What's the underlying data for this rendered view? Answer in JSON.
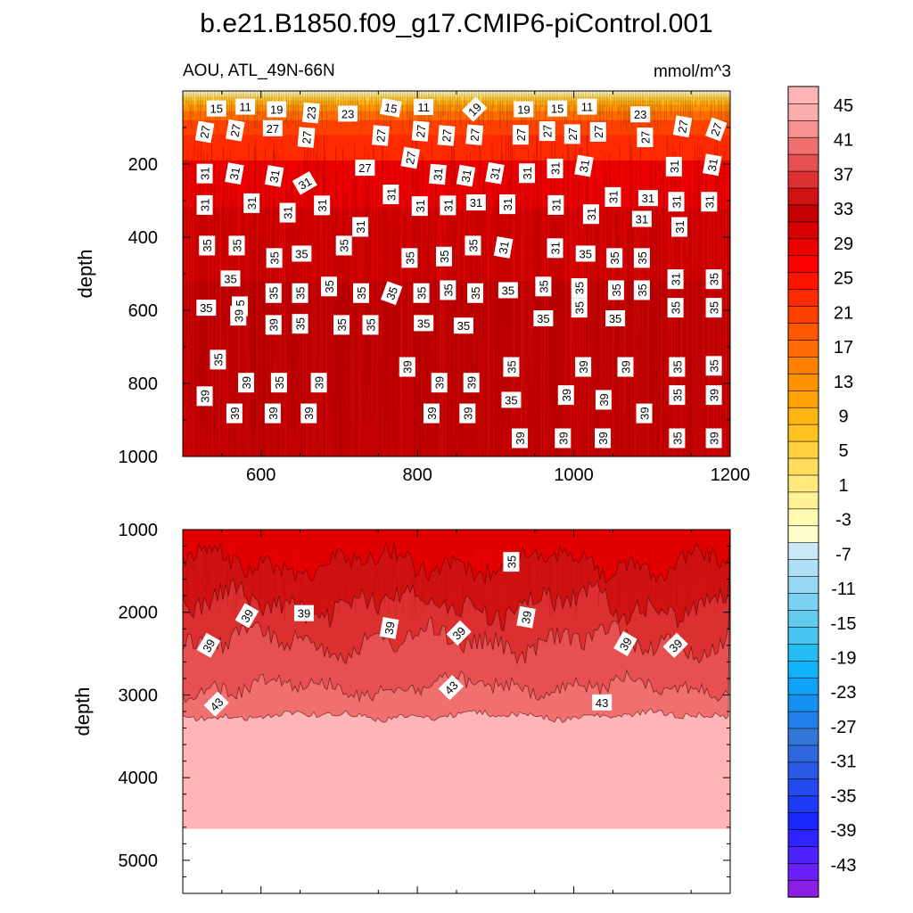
{
  "chart_data": {
    "type": "contour",
    "title": "b.e21.B1850.f09_g17.CMIP6-piControl.001",
    "left_subtitle": "AOU, ATL_49N-66N",
    "units": "mmol/m^3",
    "ylabel": "depth",
    "colorbar": {
      "min": -47,
      "max": 49,
      "step": 2,
      "labels": [
        "45",
        "41",
        "37",
        "33",
        "29",
        "25",
        "21",
        "17",
        "13",
        "9",
        "5",
        "1",
        "-3",
        "-7",
        "-11",
        "-15",
        "-19",
        "-23",
        "-27",
        "-31",
        "-35",
        "-39",
        "-43"
      ],
      "colors": [
        "#8b1fe6",
        "#6b1ff7",
        "#4d22fc",
        "#2f24fd",
        "#1a27fb",
        "#1d3af5",
        "#2449ec",
        "#2a58e4",
        "#2f67dd",
        "#3377d6",
        "#207fe8",
        "#1690f2",
        "#10a2f7",
        "#10b4f8",
        "#24bdf2",
        "#45c5f0",
        "#62cbf0",
        "#7dd1f2",
        "#96d8f3",
        "#b0e0f5",
        "#c8e9f8",
        "#ffffcc",
        "#fffab0",
        "#fff296",
        "#ffe97a",
        "#ffdd5c",
        "#ffd040",
        "#ffc21f",
        "#ffb411",
        "#ffa307",
        "#ff9200",
        "#ff7f00",
        "#ff6b00",
        "#ff5600",
        "#ff4100",
        "#ff2b00",
        "#ff1400",
        "#ff0000",
        "#ec0000",
        "#d80000",
        "#c40000",
        "#d11212",
        "#dc3030",
        "#e75050",
        "#f07070",
        "#f79090",
        "#fcadad",
        "#ffb5b5"
      ]
    },
    "top_panel": {
      "xlim": [
        500,
        1200
      ],
      "ylim": [
        1000,
        0
      ],
      "xticks": [
        600,
        800,
        1000,
        1200
      ],
      "yticks": [
        200,
        400,
        600,
        800,
        1000
      ],
      "contour_labels": [
        {
          "t": "15",
          "x": 543,
          "y": 48,
          "r": 0
        },
        {
          "t": "11",
          "x": 580,
          "y": 43,
          "r": 0
        },
        {
          "t": "19",
          "x": 620,
          "y": 50,
          "r": 0
        },
        {
          "t": "23",
          "x": 664,
          "y": 60,
          "r": -85
        },
        {
          "t": "23",
          "x": 711,
          "y": 62,
          "r": 0
        },
        {
          "t": "15",
          "x": 766,
          "y": 46,
          "r": 10
        },
        {
          "t": "11",
          "x": 808,
          "y": 44,
          "r": 0
        },
        {
          "t": "19",
          "x": 873,
          "y": 50,
          "r": -45
        },
        {
          "t": "19",
          "x": 936,
          "y": 50,
          "r": 0
        },
        {
          "t": "15",
          "x": 979,
          "y": 48,
          "r": 0
        },
        {
          "t": "11",
          "x": 1017,
          "y": 43,
          "r": 0
        },
        {
          "t": "23",
          "x": 1085,
          "y": 64,
          "r": 0
        },
        {
          "t": "27",
          "x": 528,
          "y": 112,
          "r": -80
        },
        {
          "t": "27",
          "x": 567,
          "y": 108,
          "r": -80
        },
        {
          "t": "27",
          "x": 615,
          "y": 102,
          "r": 0
        },
        {
          "t": "27",
          "x": 658,
          "y": 127,
          "r": -85
        },
        {
          "t": "27",
          "x": 753,
          "y": 122,
          "r": -85
        },
        {
          "t": "27",
          "x": 804,
          "y": 110,
          "r": -85
        },
        {
          "t": "27",
          "x": 837,
          "y": 122,
          "r": -85
        },
        {
          "t": "27",
          "x": 873,
          "y": 120,
          "r": -85
        },
        {
          "t": "27",
          "x": 932,
          "y": 120,
          "r": -90
        },
        {
          "t": "27",
          "x": 966,
          "y": 110,
          "r": -90
        },
        {
          "t": "27",
          "x": 998,
          "y": 118,
          "r": -90
        },
        {
          "t": "27",
          "x": 1031,
          "y": 112,
          "r": -90
        },
        {
          "t": "27",
          "x": 1091,
          "y": 127,
          "r": -90
        },
        {
          "t": "27",
          "x": 1139,
          "y": 97,
          "r": -80
        },
        {
          "t": "27",
          "x": 1182,
          "y": 105,
          "r": -70
        },
        {
          "t": "31",
          "x": 528,
          "y": 226,
          "r": -90
        },
        {
          "t": "31",
          "x": 566,
          "y": 226,
          "r": -80
        },
        {
          "t": "31",
          "x": 617,
          "y": 233,
          "r": -80
        },
        {
          "t": "31",
          "x": 656,
          "y": 252,
          "r": -30
        },
        {
          "t": "27",
          "x": 733,
          "y": 210,
          "r": 0
        },
        {
          "t": "27",
          "x": 791,
          "y": 183,
          "r": -80
        },
        {
          "t": "31",
          "x": 826,
          "y": 228,
          "r": -85
        },
        {
          "t": "31",
          "x": 862,
          "y": 232,
          "r": -80
        },
        {
          "t": "31",
          "x": 899,
          "y": 225,
          "r": -80
        },
        {
          "t": "31",
          "x": 940,
          "y": 225,
          "r": -90
        },
        {
          "t": "31",
          "x": 976,
          "y": 212,
          "r": -90
        },
        {
          "t": "31",
          "x": 1013,
          "y": 205,
          "r": -80
        },
        {
          "t": "31",
          "x": 1050,
          "y": 290,
          "r": -90
        },
        {
          "t": "31",
          "x": 1128,
          "y": 207,
          "r": -90
        },
        {
          "t": "31",
          "x": 1177,
          "y": 202,
          "r": -80
        },
        {
          "t": "31",
          "x": 528,
          "y": 312,
          "r": -90
        },
        {
          "t": "31",
          "x": 588,
          "y": 307,
          "r": -90
        },
        {
          "t": "31",
          "x": 634,
          "y": 333,
          "r": -90
        },
        {
          "t": "31",
          "x": 678,
          "y": 313,
          "r": -90
        },
        {
          "t": "31",
          "x": 766,
          "y": 283,
          "r": -90
        },
        {
          "t": "31",
          "x": 803,
          "y": 315,
          "r": -90
        },
        {
          "t": "31",
          "x": 839,
          "y": 313,
          "r": -90
        },
        {
          "t": "31",
          "x": 875,
          "y": 305,
          "r": 0
        },
        {
          "t": "31",
          "x": 915,
          "y": 310,
          "r": -90
        },
        {
          "t": "31",
          "x": 977,
          "y": 312,
          "r": -90
        },
        {
          "t": "31",
          "x": 1022,
          "y": 337,
          "r": -90
        },
        {
          "t": "31",
          "x": 1095,
          "y": 293,
          "r": 0
        },
        {
          "t": "31",
          "x": 1131,
          "y": 303,
          "r": -90
        },
        {
          "t": "31",
          "x": 1173,
          "y": 303,
          "r": -90
        },
        {
          "t": "31",
          "x": 727,
          "y": 372,
          "r": -90
        },
        {
          "t": "31",
          "x": 1087,
          "y": 350,
          "r": 0
        },
        {
          "t": "31",
          "x": 1135,
          "y": 372,
          "r": -90
        },
        {
          "t": "35",
          "x": 531,
          "y": 423,
          "r": -90
        },
        {
          "t": "35",
          "x": 569,
          "y": 423,
          "r": -90
        },
        {
          "t": "35",
          "x": 617,
          "y": 457,
          "r": -90
        },
        {
          "t": "35",
          "x": 652,
          "y": 445,
          "r": 0
        },
        {
          "t": "35",
          "x": 706,
          "y": 423,
          "r": -90
        },
        {
          "t": "35",
          "x": 790,
          "y": 457,
          "r": -90
        },
        {
          "t": "35",
          "x": 834,
          "y": 453,
          "r": -90
        },
        {
          "t": "35",
          "x": 871,
          "y": 423,
          "r": -90
        },
        {
          "t": "31",
          "x": 910,
          "y": 428,
          "r": -80
        },
        {
          "t": "31",
          "x": 976,
          "y": 430,
          "r": -90
        },
        {
          "t": "35",
          "x": 1015,
          "y": 445,
          "r": 0
        },
        {
          "t": "35",
          "x": 1052,
          "y": 457,
          "r": -90
        },
        {
          "t": "35",
          "x": 1087,
          "y": 457,
          "r": -90
        },
        {
          "t": "35",
          "x": 1179,
          "y": 515,
          "r": -90
        },
        {
          "t": "35",
          "x": 561,
          "y": 513,
          "r": 0
        },
        {
          "t": "31",
          "x": 1130,
          "y": 515,
          "r": -90
        },
        {
          "t": "35",
          "x": 530,
          "y": 593,
          "r": 0
        },
        {
          "t": "35",
          "x": 573,
          "y": 589,
          "r": -90
        },
        {
          "t": "35",
          "x": 616,
          "y": 553,
          "r": -90
        },
        {
          "t": "35",
          "x": 650,
          "y": 553,
          "r": -90
        },
        {
          "t": "35",
          "x": 687,
          "y": 535,
          "r": -90
        },
        {
          "t": "35",
          "x": 728,
          "y": 553,
          "r": -90
        },
        {
          "t": "35",
          "x": 767,
          "y": 553,
          "r": -70
        },
        {
          "t": "35",
          "x": 805,
          "y": 553,
          "r": -90
        },
        {
          "t": "35",
          "x": 839,
          "y": 545,
          "r": -90
        },
        {
          "t": "35",
          "x": 874,
          "y": 553,
          "r": -90
        },
        {
          "t": "35",
          "x": 916,
          "y": 545,
          "r": 0
        },
        {
          "t": "35",
          "x": 961,
          "y": 535,
          "r": -90
        },
        {
          "t": "35",
          "x": 1007,
          "y": 539,
          "r": -90
        },
        {
          "t": "35",
          "x": 1054,
          "y": 545,
          "r": -90
        },
        {
          "t": "35",
          "x": 1087,
          "y": 545,
          "r": -90
        },
        {
          "t": "35",
          "x": 1130,
          "y": 593,
          "r": -90
        },
        {
          "t": "35",
          "x": 1179,
          "y": 593,
          "r": -90
        },
        {
          "t": "39",
          "x": 616,
          "y": 640,
          "r": -90
        },
        {
          "t": "35",
          "x": 650,
          "y": 637,
          "r": -90
        },
        {
          "t": "35",
          "x": 703,
          "y": 640,
          "r": -90
        },
        {
          "t": "35",
          "x": 740,
          "y": 640,
          "r": -90
        },
        {
          "t": "35",
          "x": 808,
          "y": 635,
          "r": 0
        },
        {
          "t": "35",
          "x": 859,
          "y": 642,
          "r": 0
        },
        {
          "t": "35",
          "x": 961,
          "y": 622,
          "r": 0
        },
        {
          "t": "35",
          "x": 1007,
          "y": 593,
          "r": -90
        },
        {
          "t": "35",
          "x": 1053,
          "y": 622,
          "r": 0
        },
        {
          "t": "35",
          "x": 545,
          "y": 735,
          "r": -90
        },
        {
          "t": "39",
          "x": 787,
          "y": 755,
          "r": -90
        },
        {
          "t": "35",
          "x": 920,
          "y": 755,
          "r": -90
        },
        {
          "t": "39",
          "x": 1012,
          "y": 755,
          "r": -90
        },
        {
          "t": "39",
          "x": 1066,
          "y": 755,
          "r": -90
        },
        {
          "t": "35",
          "x": 1132,
          "y": 755,
          "r": -90
        },
        {
          "t": "35",
          "x": 1179,
          "y": 752,
          "r": -90
        },
        {
          "t": "39",
          "x": 571,
          "y": 615,
          "r": -90
        },
        {
          "t": "39",
          "x": 528,
          "y": 835,
          "r": -90
        },
        {
          "t": "39",
          "x": 581,
          "y": 798,
          "r": -90
        },
        {
          "t": "35",
          "x": 623,
          "y": 798,
          "r": -90
        },
        {
          "t": "39",
          "x": 674,
          "y": 798,
          "r": -90
        },
        {
          "t": "39",
          "x": 828,
          "y": 798,
          "r": -90
        },
        {
          "t": "39",
          "x": 869,
          "y": 798,
          "r": -90
        },
        {
          "t": "35",
          "x": 920,
          "y": 845,
          "r": 0
        },
        {
          "t": "39",
          "x": 990,
          "y": 832,
          "r": -90
        },
        {
          "t": "39",
          "x": 1038,
          "y": 845,
          "r": -90
        },
        {
          "t": "35",
          "x": 1132,
          "y": 832,
          "r": -90
        },
        {
          "t": "39",
          "x": 1179,
          "y": 832,
          "r": -90
        },
        {
          "t": "39",
          "x": 566,
          "y": 882,
          "r": -90
        },
        {
          "t": "39",
          "x": 615,
          "y": 882,
          "r": -90
        },
        {
          "t": "39",
          "x": 661,
          "y": 882,
          "r": -90
        },
        {
          "t": "39",
          "x": 818,
          "y": 882,
          "r": -90
        },
        {
          "t": "39",
          "x": 864,
          "y": 882,
          "r": -90
        },
        {
          "t": "39",
          "x": 1090,
          "y": 882,
          "r": -90
        },
        {
          "t": "39",
          "x": 931,
          "y": 950,
          "r": -90
        },
        {
          "t": "39",
          "x": 986,
          "y": 950,
          "r": -90
        },
        {
          "t": "39",
          "x": 1037,
          "y": 950,
          "r": -90
        },
        {
          "t": "35",
          "x": 1132,
          "y": 950,
          "r": -90
        },
        {
          "t": "39",
          "x": 1179,
          "y": 950,
          "r": -90
        }
      ]
    },
    "bottom_panel": {
      "xlim": [
        500,
        1200
      ],
      "ylim": [
        5400,
        1000
      ],
      "yticks": [
        1000,
        2000,
        3000,
        4000,
        5000
      ],
      "bottom_depth": 4620,
      "contour_labels": [
        {
          "t": "35",
          "x": 920,
          "y": 1390,
          "r": -90
        },
        {
          "t": "39",
          "x": 533,
          "y": 2400,
          "r": -60
        },
        {
          "t": "39",
          "x": 582,
          "y": 2040,
          "r": -60
        },
        {
          "t": "39",
          "x": 655,
          "y": 2010,
          "r": 0
        },
        {
          "t": "39",
          "x": 764,
          "y": 2190,
          "r": -80
        },
        {
          "t": "39",
          "x": 853,
          "y": 2250,
          "r": -45
        },
        {
          "t": "39",
          "x": 939,
          "y": 2060,
          "r": -80
        },
        {
          "t": "39",
          "x": 1066,
          "y": 2380,
          "r": -60
        },
        {
          "t": "39",
          "x": 1130,
          "y": 2400,
          "r": -45
        },
        {
          "t": "43",
          "x": 543,
          "y": 3110,
          "r": -45
        },
        {
          "t": "43",
          "x": 843,
          "y": 2910,
          "r": -45
        },
        {
          "t": "43",
          "x": 1036,
          "y": 3090,
          "r": 0
        }
      ]
    }
  }
}
